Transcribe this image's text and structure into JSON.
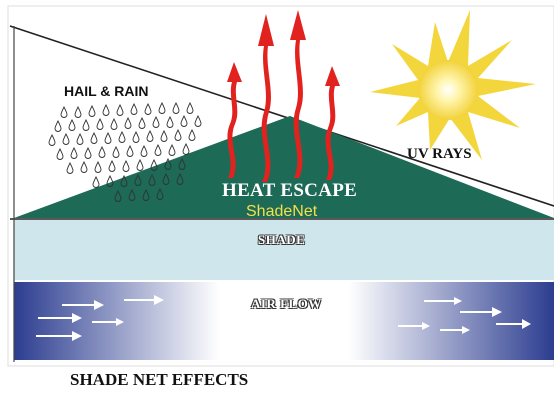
{
  "labels": {
    "hail_rain": "HAIL & RAIN",
    "uv_rays": "UV RAYS",
    "heat_escape": "HEAT ESCAPE",
    "shadenet": "ShadeNet",
    "shade": "SHADE",
    "air_flow": "AIR FLOW",
    "title": "SHADE NET EFFECTS"
  },
  "colors": {
    "net_green": "#1b6b55",
    "shade_band": "#cfe7ec",
    "air_blue": "#2a3b8f",
    "heat_arrow": "#e02020",
    "sun": "#f6e05a"
  },
  "icons": [
    "sun-icon",
    "raindrop-icon",
    "heat-arrow-icon",
    "airflow-arrow-icon"
  ]
}
